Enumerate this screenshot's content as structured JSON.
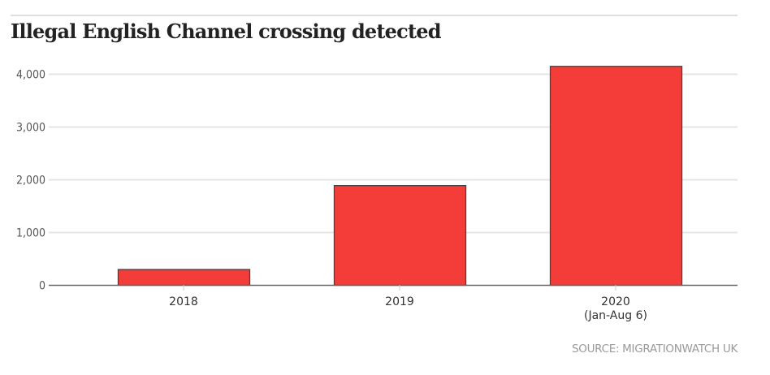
{
  "title": "Illegal English Channel crossing detected",
  "source": "SOURCE: MIGRATIONWATCH UK",
  "colors": {
    "bar_fill": "#f43d38",
    "bar_stroke": "#444444",
    "grid": "#e4e4e4",
    "axis": "#666666"
  },
  "chart_data": {
    "type": "bar",
    "title": "Illegal English Channel crossing detected",
    "xlabel": "",
    "ylabel": "",
    "categories": [
      "2018",
      "2019",
      "2020"
    ],
    "category_sublabels": [
      "",
      "",
      "(Jan-Aug 6)"
    ],
    "values": [
      300,
      1890,
      4150
    ],
    "ylim": [
      0,
      4000
    ],
    "yticks": [
      0,
      1000,
      2000,
      3000,
      4000
    ],
    "ytick_labels": [
      "0",
      "1,000",
      "2,000",
      "3,000",
      "4,000"
    ],
    "grid": true,
    "legend": "none",
    "source": "SOURCE: MIGRATIONWATCH UK"
  }
}
